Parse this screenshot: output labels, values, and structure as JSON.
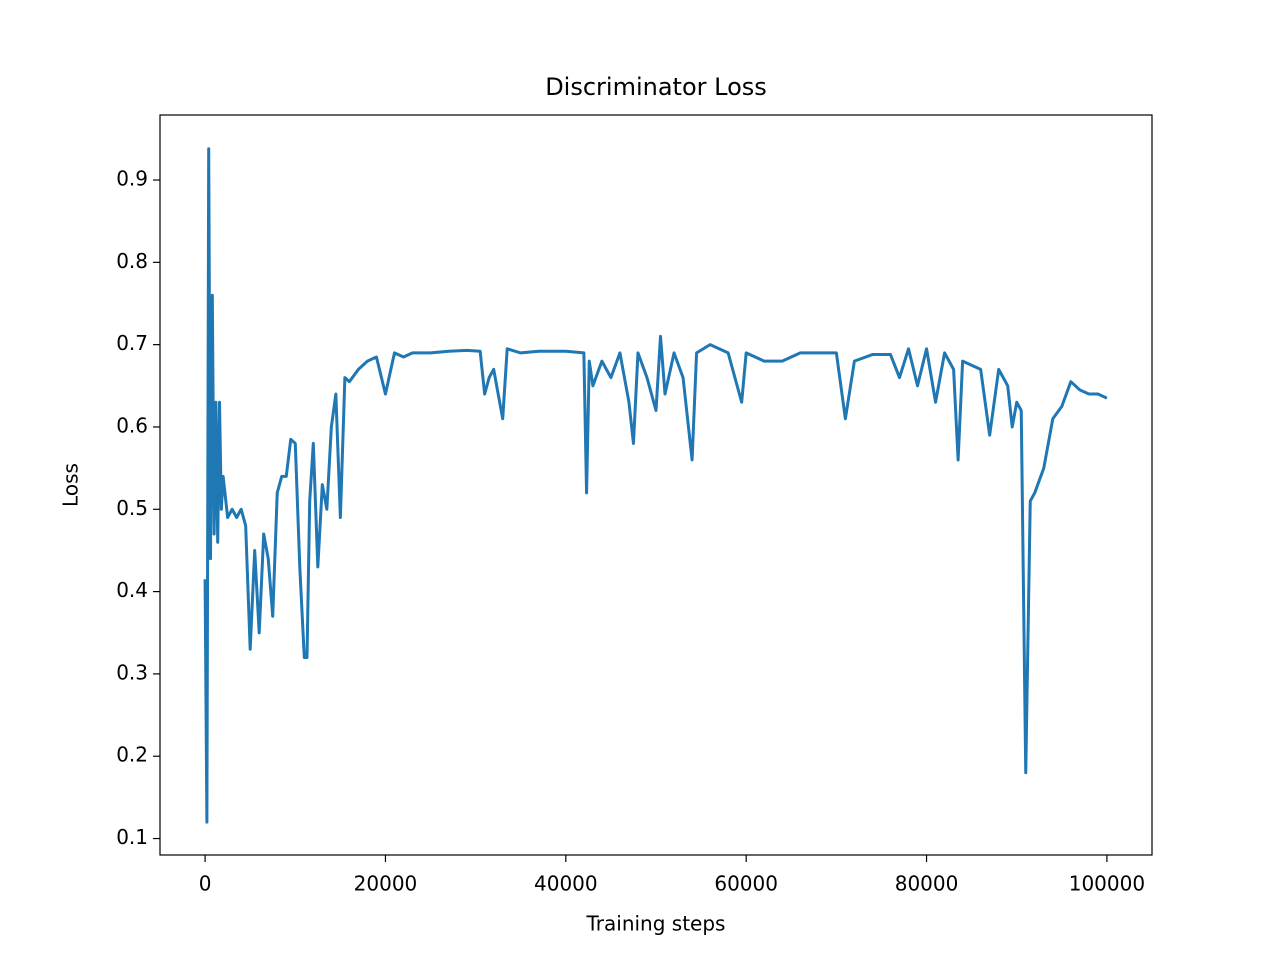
{
  "chart_data": {
    "type": "line",
    "title": "Discriminator Loss",
    "x_label": "Training steps",
    "y_label": "Loss",
    "xlim": [
      -5000,
      105000
    ],
    "ylim": [
      0.08,
      0.979
    ],
    "xticks": [
      0,
      20000,
      40000,
      60000,
      80000,
      100000
    ],
    "yticks": [
      0.1,
      0.2,
      0.3,
      0.4,
      0.5,
      0.6,
      0.7,
      0.8,
      0.9
    ],
    "grid": false,
    "series": [
      {
        "color": "#1f77b4",
        "x": [
          0,
          200,
          400,
          600,
          800,
          1000,
          1200,
          1400,
          1600,
          1800,
          2000,
          2500,
          3000,
          3500,
          4000,
          4500,
          5000,
          5500,
          6000,
          6500,
          7000,
          7500,
          8000,
          8500,
          9000,
          9500,
          10000,
          10500,
          11000,
          11300,
          11600,
          12000,
          12500,
          13000,
          13500,
          14000,
          14500,
          15000,
          15500,
          16000,
          17000,
          18000,
          19000,
          20000,
          21000,
          22000,
          23000,
          25000,
          27000,
          29000,
          30500,
          31000,
          31500,
          32000,
          33000,
          33500,
          35000,
          37000,
          40000,
          42000,
          42300,
          42600,
          43000,
          44000,
          45000,
          46000,
          47000,
          47500,
          48000,
          49000,
          50000,
          50500,
          51000,
          52000,
          53000,
          54000,
          54500,
          56000,
          58000,
          59500,
          60000,
          62000,
          64000,
          66000,
          68000,
          70000,
          71000,
          72000,
          74000,
          76000,
          77000,
          78000,
          79000,
          80000,
          81000,
          82000,
          83000,
          83500,
          84000,
          86000,
          87000,
          88000,
          89000,
          89500,
          90000,
          90500,
          91000,
          91500,
          92000,
          93000,
          94000,
          95000,
          96000,
          97000,
          98000,
          99000,
          100000
        ],
        "values": [
          0.415,
          0.12,
          0.938,
          0.44,
          0.76,
          0.47,
          0.63,
          0.46,
          0.63,
          0.5,
          0.54,
          0.49,
          0.5,
          0.49,
          0.5,
          0.48,
          0.33,
          0.45,
          0.35,
          0.47,
          0.44,
          0.37,
          0.52,
          0.54,
          0.54,
          0.585,
          0.58,
          0.43,
          0.32,
          0.32,
          0.51,
          0.58,
          0.43,
          0.53,
          0.5,
          0.6,
          0.64,
          0.49,
          0.66,
          0.655,
          0.67,
          0.68,
          0.685,
          0.64,
          0.69,
          0.685,
          0.69,
          0.69,
          0.692,
          0.693,
          0.692,
          0.64,
          0.66,
          0.67,
          0.61,
          0.695,
          0.69,
          0.692,
          0.692,
          0.69,
          0.52,
          0.68,
          0.65,
          0.68,
          0.66,
          0.69,
          0.63,
          0.58,
          0.69,
          0.66,
          0.62,
          0.71,
          0.64,
          0.69,
          0.66,
          0.56,
          0.69,
          0.7,
          0.69,
          0.63,
          0.69,
          0.68,
          0.68,
          0.69,
          0.69,
          0.69,
          0.61,
          0.68,
          0.688,
          0.688,
          0.66,
          0.695,
          0.65,
          0.695,
          0.63,
          0.69,
          0.67,
          0.56,
          0.68,
          0.67,
          0.59,
          0.67,
          0.65,
          0.6,
          0.63,
          0.62,
          0.18,
          0.51,
          0.52,
          0.55,
          0.61,
          0.625,
          0.655,
          0.645,
          0.64,
          0.64,
          0.635
        ]
      }
    ]
  }
}
